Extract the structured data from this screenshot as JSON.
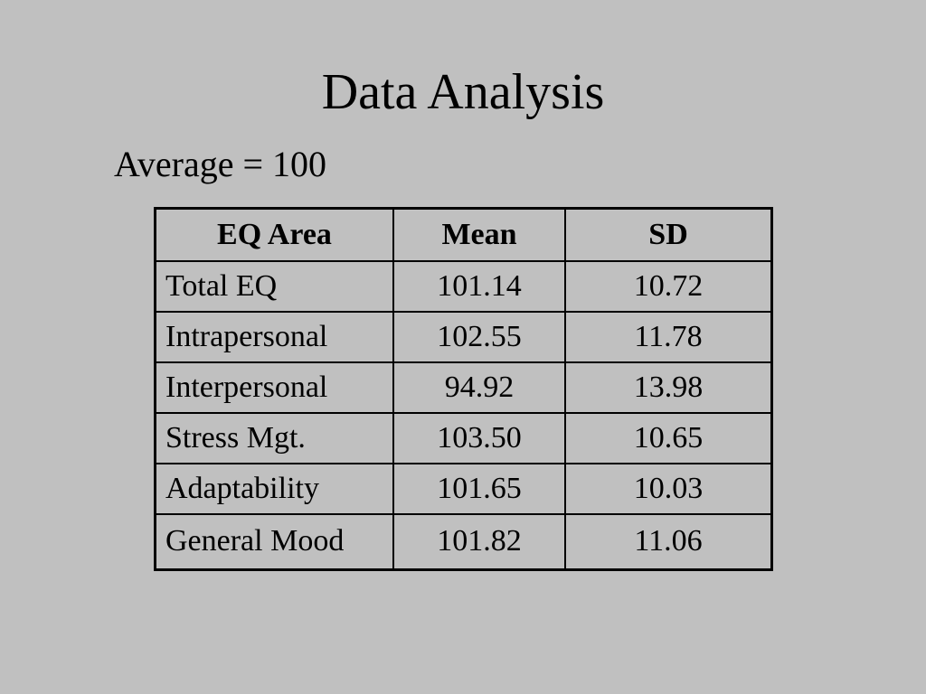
{
  "slide": {
    "title": "Data Analysis",
    "subtitle": "Average = 100"
  },
  "table": {
    "headers": [
      "EQ Area",
      "Mean",
      "SD"
    ],
    "rows": [
      {
        "area": "Total EQ",
        "mean": "101.14",
        "sd": "10.72"
      },
      {
        "area": "Intrapersonal",
        "mean": "102.55",
        "sd": "11.78"
      },
      {
        "area": "Interpersonal",
        "mean": "94.92",
        "sd": "13.98"
      },
      {
        "area": "Stress Mgt.",
        "mean": "103.50",
        "sd": "10.65"
      },
      {
        "area": "Adaptability",
        "mean": "101.65",
        "sd": "10.03"
      },
      {
        "area": "General Mood",
        "mean": "101.82",
        "sd": "11.06"
      }
    ]
  }
}
